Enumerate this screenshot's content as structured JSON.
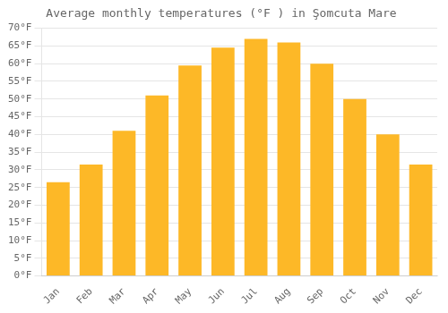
{
  "chart_data": {
    "type": "bar",
    "title": "Average monthly temperatures (°F ) in Şomcuta Mare",
    "categories": [
      "Jan",
      "Feb",
      "Mar",
      "Apr",
      "May",
      "Jun",
      "Jul",
      "Aug",
      "Sep",
      "Oct",
      "Nov",
      "Dec"
    ],
    "values": [
      26.5,
      31.5,
      41.0,
      51.0,
      59.5,
      64.5,
      67.0,
      66.0,
      60.0,
      50.0,
      40.0,
      31.5
    ],
    "color": "#FDB827",
    "ylim": [
      0,
      70
    ],
    "yticks": [
      {
        "value": 0,
        "label": "0°F"
      },
      {
        "value": 5,
        "label": "5°F"
      },
      {
        "value": 10,
        "label": "10°F"
      },
      {
        "value": 15,
        "label": "15°F"
      },
      {
        "value": 20,
        "label": "20°F"
      },
      {
        "value": 25,
        "label": "25°F"
      },
      {
        "value": 30,
        "label": "30°F"
      },
      {
        "value": 35,
        "label": "35°F"
      },
      {
        "value": 40,
        "label": "40°F"
      },
      {
        "value": 45,
        "label": "45°F"
      },
      {
        "value": 50,
        "label": "50°F"
      },
      {
        "value": 55,
        "label": "55°F"
      },
      {
        "value": 60,
        "label": "60°F"
      },
      {
        "value": 65,
        "label": "65°F"
      },
      {
        "value": 70,
        "label": "70°F"
      }
    ],
    "grid": true
  }
}
